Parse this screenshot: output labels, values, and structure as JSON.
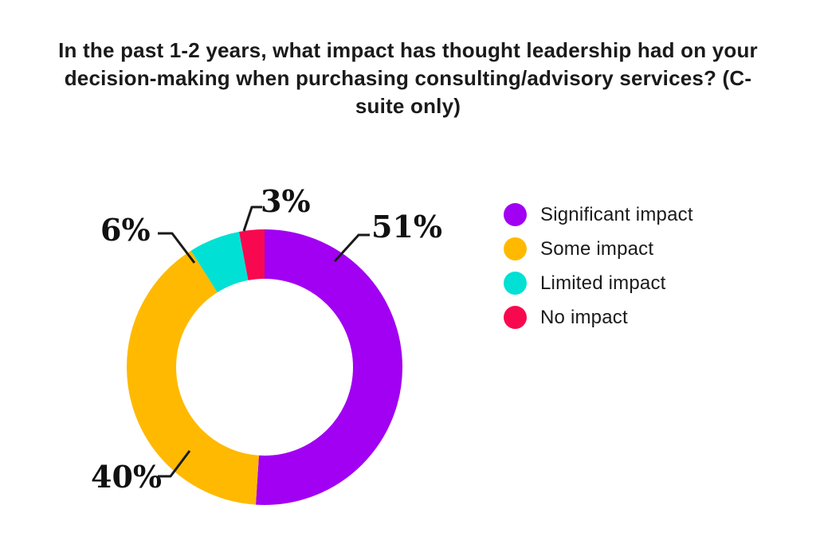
{
  "title": "In the past 1-2 years, what impact has thought leadership had on your decision-making when purchasing consulting/advisory services? (C-suite only)",
  "chart_data": {
    "type": "pie",
    "subtype": "donut",
    "categories": [
      "Significant impact",
      "Some impact",
      "Limited impact",
      "No impact"
    ],
    "values": [
      51,
      40,
      6,
      3
    ],
    "value_labels": [
      "51%",
      "40%",
      "6%",
      "3%"
    ],
    "colors": [
      "#A100F2",
      "#FFB900",
      "#00E0D4",
      "#F8094F"
    ],
    "start_angle_deg": 0,
    "direction": "clockwise",
    "legend_position": "right",
    "title": "In the past 1-2 years, what impact has thought leadership had on your decision-making when purchasing consulting/advisory services? (C-suite only)"
  },
  "colors": {
    "background": "#ffffff",
    "text": "#1a1a1a",
    "leader_line": "#1a1a1a"
  }
}
